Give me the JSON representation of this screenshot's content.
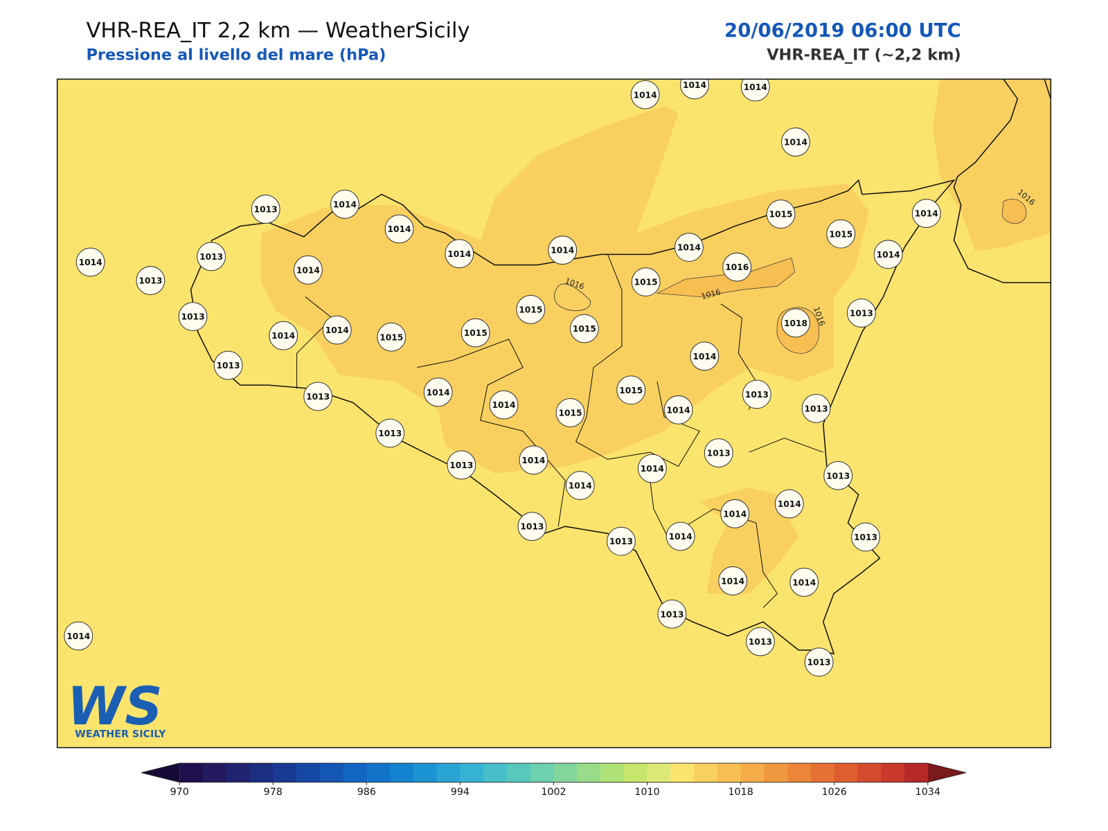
{
  "header": {
    "title": "VHR-REA_IT 2,2 km — WeatherSicily",
    "subtitle": "Pressione al livello del mare (hPa)",
    "date": "20/06/2019 06:00 UTC",
    "model": "VHR-REA_IT (~2,2 km)"
  },
  "map": {
    "stations": [
      1014,
      1014,
      1014,
      1014,
      1013,
      1014,
      1014,
      1014,
      1013,
      1014,
      1013,
      1014,
      1014,
      1014,
      1015,
      1015,
      1014,
      1014,
      1016,
      1015,
      1015,
      1015,
      1015,
      1018,
      1013,
      1013,
      1014,
      1014,
      1015,
      1013,
      1014,
      1013,
      1014,
      1014,
      1015,
      1015,
      1014,
      1013,
      1013,
      1013,
      1013,
      1013,
      1014,
      1014,
      1014,
      1013,
      1014,
      1014,
      1013,
      1013,
      1014,
      1013,
      1014,
      1014,
      1013,
      1013,
      1013,
      1014
    ],
    "contour_labels": [
      1016,
      1016,
      1016,
      1016
    ]
  },
  "colorbar": {
    "ticks": [
      970,
      978,
      986,
      994,
      1002,
      1010,
      1018,
      1026,
      1034
    ],
    "colors": [
      "#1f0f4e",
      "#23195e",
      "#1f2370",
      "#1b2e82",
      "#183a93",
      "#1547a5",
      "#1456b4",
      "#1265c2",
      "#1174c9",
      "#1383cf",
      "#1c93d2",
      "#28a3d4",
      "#36b3d2",
      "#46bfca",
      "#58c8bd",
      "#6dd0ae",
      "#82d69c",
      "#98dc89",
      "#afe277",
      "#c6e76c",
      "#dce977",
      "#fbe46e",
      "#f9d060",
      "#f7be52",
      "#f4ab48",
      "#f0983f",
      "#ec8538",
      "#e67133",
      "#df5d2f",
      "#d44b2d",
      "#c9392b",
      "#b62828"
    ],
    "under": "#160b36",
    "over": "#7a1a1a"
  },
  "logo": {
    "mark": "WS",
    "text": "WEATHER SICILY"
  }
}
